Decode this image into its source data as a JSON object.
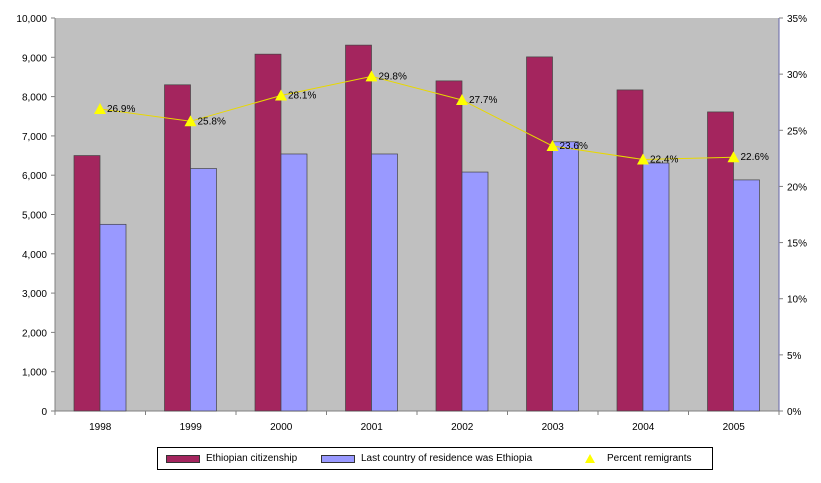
{
  "chart_data": {
    "type": "bar",
    "categories": [
      "1998",
      "1999",
      "2000",
      "2001",
      "2002",
      "2003",
      "2004",
      "2005"
    ],
    "series": [
      {
        "name": "Ethiopian citizenship",
        "type": "bar",
        "axis": "left",
        "color": "#a4255e",
        "values": [
          6500,
          8300,
          9080,
          9310,
          8400,
          9010,
          8170,
          7610
        ]
      },
      {
        "name": "Last country of residence was Ethiopia",
        "type": "bar",
        "axis": "left",
        "color": "#9999ff",
        "values": [
          4750,
          6170,
          6540,
          6540,
          6080,
          6850,
          6310,
          5880
        ]
      },
      {
        "name": "Percent remigrants",
        "type": "line",
        "axis": "right",
        "color": "#ffff00",
        "values": [
          26.9,
          25.8,
          28.1,
          29.8,
          27.7,
          23.6,
          22.4,
          22.6
        ],
        "labels": [
          "26.9%",
          "25.8%",
          "28.1%",
          "29.8%",
          "27.7%",
          "23.6%",
          "22.4%",
          "22.6%"
        ]
      }
    ],
    "ylim": [
      0,
      10000
    ],
    "yticks": [
      "0",
      "1,000",
      "2,000",
      "3,000",
      "4,000",
      "5,000",
      "6,000",
      "7,000",
      "8,000",
      "9,000",
      "10,000"
    ],
    "y2lim": [
      0,
      35
    ],
    "y2ticks": [
      "0%",
      "5%",
      "10%",
      "15%",
      "20%",
      "25%",
      "30%",
      "35%"
    ],
    "plot_background": "#c0c0c0",
    "legend_position": "bottom"
  }
}
